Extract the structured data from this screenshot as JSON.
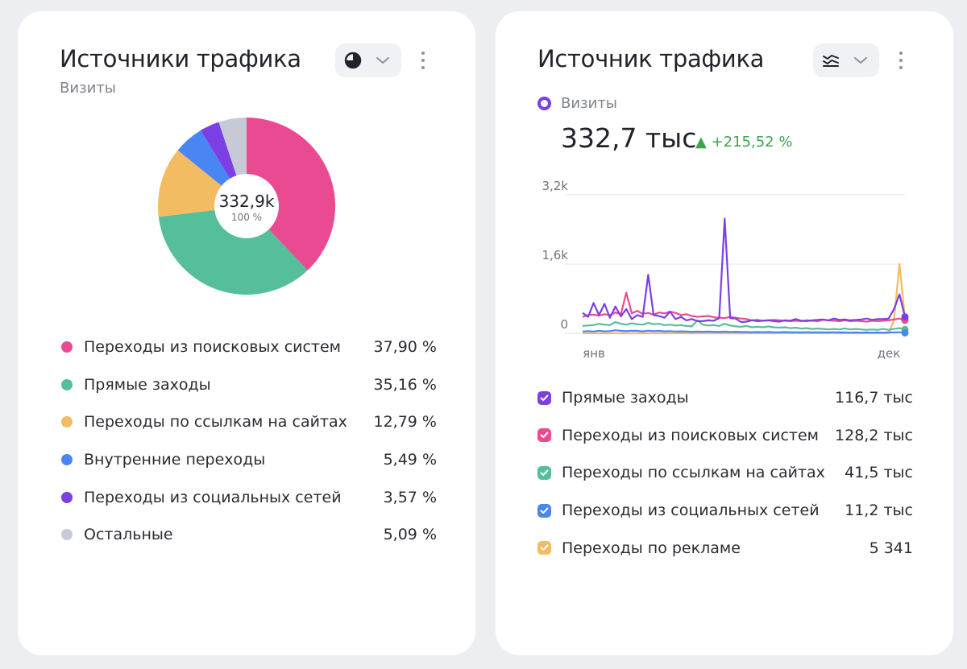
{
  "left_card": {
    "title": "Источники трафика",
    "subtitle": "Визиты",
    "chart_type_icon": "pie-chart-icon",
    "center_value": "332,9k",
    "center_pct": "100 %",
    "legend": [
      {
        "label": "Переходы из поисковых систем",
        "value": "37,90 %",
        "color": "#ea4a91"
      },
      {
        "label": "Прямые заходы",
        "value": "35,16 %",
        "color": "#55bf9b"
      },
      {
        "label": "Переходы по ссылкам на сайтах",
        "value": "12,79 %",
        "color": "#f3bc63"
      },
      {
        "label": "Внутренние переходы",
        "value": "5,49 %",
        "color": "#4a86f3"
      },
      {
        "label": "Переходы из социальных сетей",
        "value": "3,57 %",
        "color": "#7b3fe4"
      },
      {
        "label": "Остальные",
        "value": "5,09 %",
        "color": "#c7cad6"
      }
    ]
  },
  "right_card": {
    "title": "Источник трафика",
    "chart_type_icon": "line-chart-icon",
    "metric_label": "Визиты",
    "metric_value": "332,7 тыс",
    "metric_change": "▲ +215,52 %",
    "legend": [
      {
        "label": "Прямые заходы",
        "value": "116,7 тыс",
        "color": "#7b3fe4"
      },
      {
        "label": "Переходы из поисковых систем",
        "value": "128,2 тыс",
        "color": "#ea4a91"
      },
      {
        "label": "Переходы по ссылкам на сайтах",
        "value": "41,5 тыс",
        "color": "#55bf9b"
      },
      {
        "label": "Переходы из социальных сетей",
        "value": "11,2 тыс",
        "color": "#4a86f3"
      },
      {
        "label": "Переходы по рекламе",
        "value": "5 341",
        "color": "#f3bc63"
      }
    ]
  },
  "chart_data": [
    {
      "type": "pie",
      "title": "Источники трафика",
      "subtitle": "Визиты",
      "categories": [
        "Переходы из поисковых систем",
        "Прямые заходы",
        "Переходы по ссылкам на сайтах",
        "Внутренние переходы",
        "Переходы из социальных сетей",
        "Остальные"
      ],
      "values": [
        37.9,
        35.16,
        12.79,
        5.49,
        3.57,
        5.09
      ],
      "colors": [
        "#ea4a91",
        "#55bf9b",
        "#f3bc63",
        "#4a86f3",
        "#7b3fe4",
        "#c7cad6"
      ],
      "center_label": "332,9k"
    },
    {
      "type": "line",
      "title": "Источник трафика",
      "x_labels": [
        "янв",
        "дек"
      ],
      "y_ticks": [
        "0",
        "1,6k",
        "3,2k"
      ],
      "ylim": [
        0,
        3200
      ],
      "grid": true,
      "series": [
        {
          "name": "Прямые заходы",
          "color": "#7b3fe4",
          "values": [
            470,
            380,
            700,
            420,
            680,
            360,
            620,
            390,
            560,
            330,
            420,
            380,
            1350,
            420,
            400,
            360,
            500,
            330,
            380,
            300,
            330,
            280,
            280,
            300,
            290,
            350,
            2650,
            350,
            340,
            260,
            270,
            300,
            280,
            290,
            300,
            280,
            270,
            300,
            290,
            330,
            290,
            280,
            300,
            310,
            320,
            300,
            340,
            310,
            320,
            300,
            310,
            320,
            340,
            310,
            330,
            330,
            340,
            560,
            900,
            380
          ]
        },
        {
          "name": "Переходы из поисковых систем",
          "color": "#ea4a91",
          "values": [
            380,
            420,
            430,
            410,
            440,
            420,
            480,
            440,
            940,
            460,
            520,
            450,
            470,
            430,
            480,
            460,
            500,
            470,
            420,
            440,
            400,
            380,
            390,
            400,
            370,
            360,
            350,
            380,
            360,
            340,
            330,
            300,
            310,
            290,
            300,
            310,
            300,
            290,
            280,
            290,
            280,
            300,
            290,
            280,
            310,
            300,
            290,
            280,
            300,
            280,
            290,
            280,
            270,
            290,
            280,
            290,
            300,
            320,
            340,
            300
          ]
        },
        {
          "name": "Переходы по ссылкам на сайтах",
          "color": "#55bf9b",
          "values": [
            170,
            180,
            190,
            220,
            200,
            190,
            260,
            220,
            200,
            230,
            210,
            200,
            240,
            210,
            220,
            190,
            200,
            180,
            190,
            170,
            160,
            300,
            200,
            180,
            190,
            170,
            220,
            180,
            160,
            150,
            170,
            140,
            150,
            140,
            160,
            140,
            130,
            140,
            120,
            130,
            110,
            120,
            100,
            110,
            100,
            90,
            100,
            90,
            110,
            90,
            100,
            90,
            80,
            90,
            80,
            100,
            80,
            100,
            120,
            90
          ]
        },
        {
          "name": "Переходы из социальных сетей",
          "color": "#4a86f3",
          "values": [
            40,
            50,
            40,
            60,
            45,
            50,
            70,
            55,
            50,
            60,
            55,
            45,
            60,
            50,
            55,
            45,
            50,
            40,
            45,
            40,
            35,
            40,
            35,
            40,
            35,
            30,
            40,
            30,
            35,
            30,
            30,
            25,
            30,
            25,
            30,
            25,
            25,
            30,
            25,
            25,
            20,
            25,
            20,
            25,
            20,
            20,
            25,
            20,
            20,
            15,
            20,
            15,
            20,
            15,
            20,
            15,
            20,
            20,
            25,
            10
          ]
        },
        {
          "name": "Переходы по рекламе",
          "color": "#f3bc63",
          "values": [
            0,
            0,
            0,
            0,
            0,
            0,
            0,
            0,
            0,
            0,
            0,
            0,
            0,
            0,
            0,
            0,
            0,
            0,
            0,
            0,
            0,
            0,
            0,
            0,
            0,
            0,
            0,
            0,
            0,
            0,
            0,
            0,
            0,
            0,
            0,
            0,
            0,
            0,
            0,
            0,
            0,
            0,
            0,
            0,
            0,
            0,
            0,
            0,
            0,
            0,
            0,
            0,
            0,
            0,
            0,
            0,
            0,
            300,
            1600,
            350
          ]
        }
      ]
    }
  ]
}
